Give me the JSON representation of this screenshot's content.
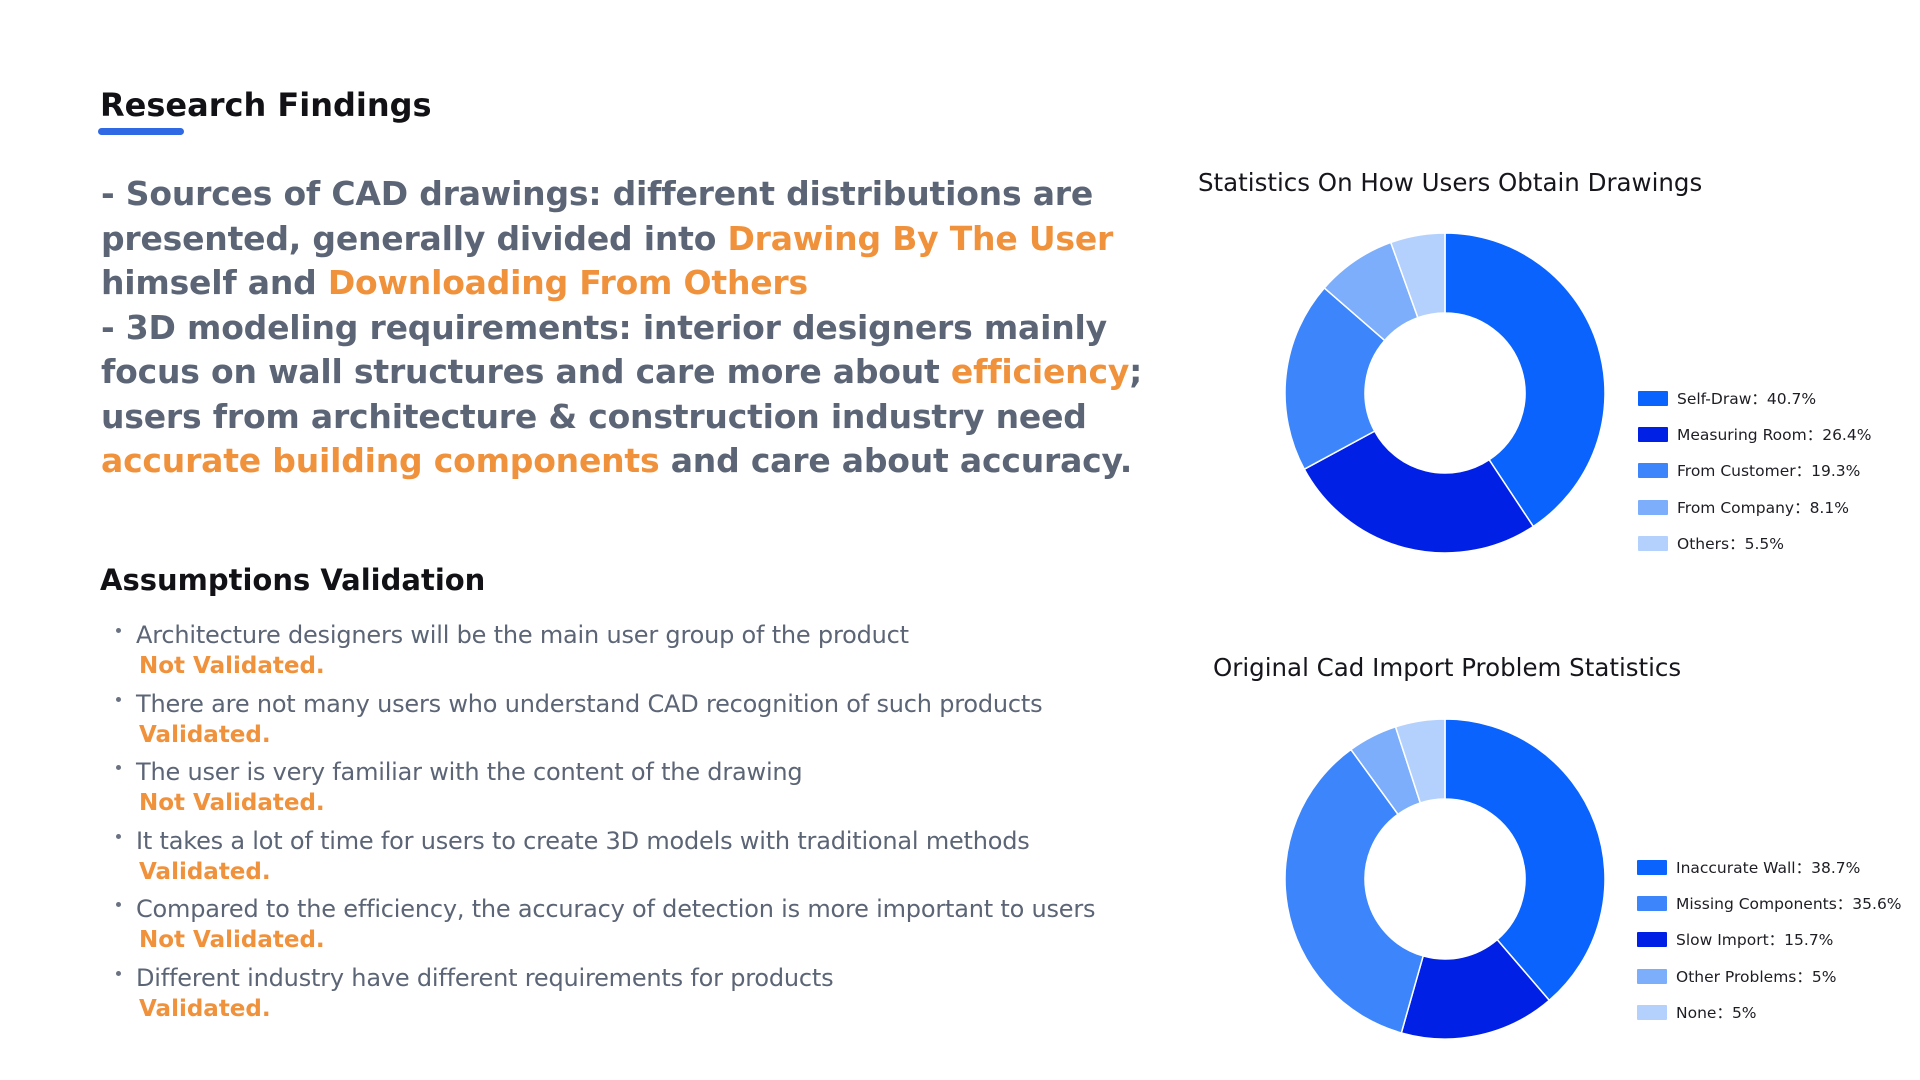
{
  "findings": {
    "title": "Research Findings",
    "paragraph_1": {
      "p1": "- Sources of CAD drawings: different distributions are presented, generally divided into ",
      "h1": "Drawing By The User",
      "p2": " himself and ",
      "h2": "Downloading From Others"
    },
    "paragraph_2": {
      "p1": "- 3D modeling requirements:  interior designers mainly focus on wall structures and care more about ",
      "h1": "efficiency",
      "p2": "; users from architecture & construction industry need ",
      "h2": "accurate building components",
      "p3": " and care about accuracy."
    }
  },
  "assumptions": {
    "title": "Assumptions Validation",
    "items": [
      {
        "text": "Architecture designers will be the main user group of the product",
        "status": "Not Validated."
      },
      {
        "text": "There are not many users who understand CAD recognition of such products",
        "status": "Validated."
      },
      {
        "text": "The user is very familiar with the content of the drawing",
        "status": "Not Validated."
      },
      {
        "text": "It takes a lot of time for users to create 3D models with traditional methods",
        "status": "Validated."
      },
      {
        "text": "Compared to the efficiency, the accuracy of detection is more important to users",
        "status": "Not Validated."
      },
      {
        "text": "Different industry have different requirements for products",
        "status": "Validated."
      }
    ]
  },
  "colors": {
    "highlight": "#f0913c",
    "accent_underline": "#2f6ae4",
    "body_text": "#5c6576"
  },
  "chart_data": [
    {
      "type": "pie",
      "variant": "donut",
      "title": "Statistics On How Users Obtain Drawings",
      "categories": [
        "Self-Draw",
        "Measuring Room",
        "From Customer",
        "From Company",
        "Others"
      ],
      "values": [
        40.7,
        26.4,
        19.3,
        8.1,
        5.5
      ],
      "legend": [
        "Self-Draw：40.7%",
        "Measuring Room：26.4%",
        "From Customer：19.3%",
        "From Company：8.1%",
        "Others：5.5%"
      ],
      "colors": [
        "#0a63fc",
        "#0120e6",
        "#3c85fb",
        "#7caefc",
        "#b4d1fe"
      ],
      "legend_position": "right"
    },
    {
      "type": "pie",
      "variant": "donut",
      "title": "Original Cad Import Problem Statistics",
      "categories": [
        "Inaccurate Wall",
        "Slow Import",
        "Missing Components",
        "Other Problems",
        "None"
      ],
      "values": [
        38.7,
        15.7,
        35.6,
        5,
        5
      ],
      "legend": [
        "Inaccurate Wall：38.7%",
        "Missing Components：35.6%",
        "Slow Import：15.7%",
        "Other Problems：5%",
        "None：5%"
      ],
      "legend_colors": [
        "#0a63fc",
        "#3c85fb",
        "#0120e6",
        "#7caefc",
        "#b4d1fe"
      ],
      "colors": [
        "#0a63fc",
        "#0120e6",
        "#3c85fb",
        "#7caefc",
        "#b4d1fe"
      ],
      "legend_position": "right"
    }
  ]
}
